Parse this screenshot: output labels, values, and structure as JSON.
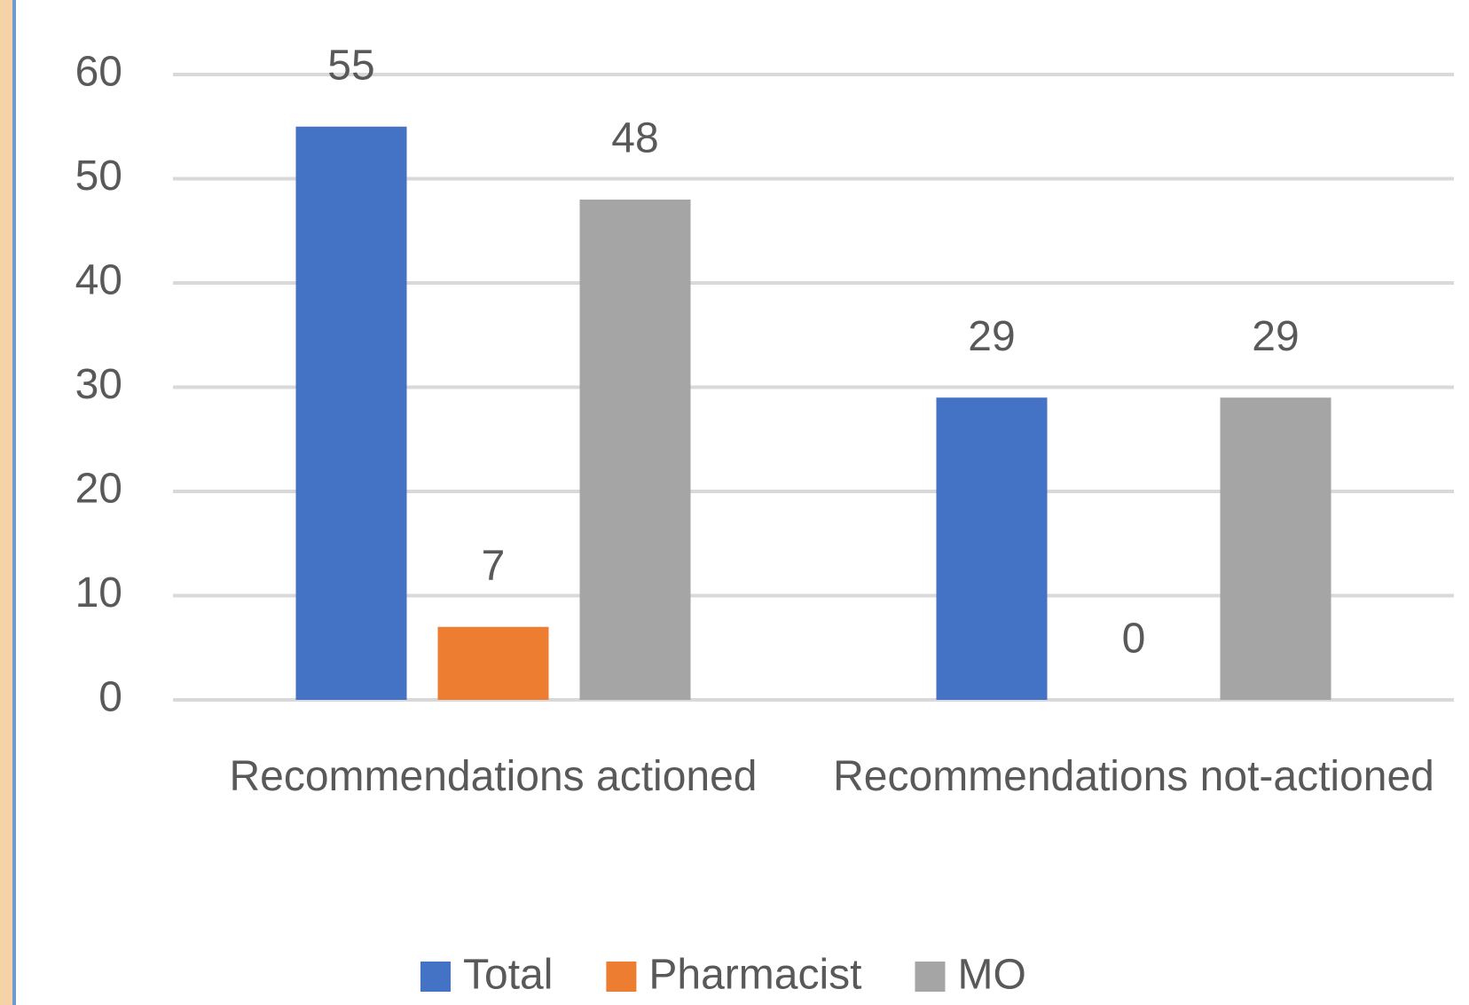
{
  "chart_data": {
    "type": "bar",
    "categories": [
      "Recommendations actioned",
      "Recommendations not-actioned"
    ],
    "series": [
      {
        "name": "Total",
        "color": "#4472c4",
        "values": [
          55,
          29
        ]
      },
      {
        "name": "Pharmacist",
        "color": "#ed7d31",
        "values": [
          7,
          0
        ]
      },
      {
        "name": "MO",
        "color": "#a5a5a5",
        "values": [
          48,
          29
        ]
      }
    ],
    "ylim": [
      0,
      60
    ],
    "yticks": [
      0,
      10,
      20,
      30,
      40,
      50,
      60
    ],
    "grid": true,
    "legend": "bottom"
  }
}
